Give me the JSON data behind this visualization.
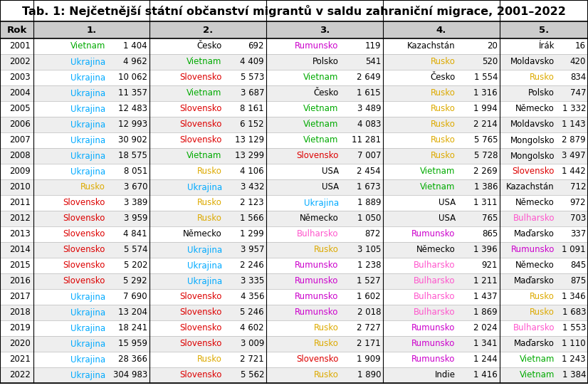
{
  "title": "Tab. 1: Nejčetnější státní občanství migrantů v saldu zahraniční migrace, 2001–2022",
  "columns": [
    "Rok",
    "1.",
    "2.",
    "3.",
    "4.",
    "5."
  ],
  "rows": [
    {
      "year": "2001",
      "c1_name": "Vietnam",
      "c1_val": "1 404",
      "c1_color": "#00aa00",
      "c2_name": "Česko",
      "c2_val": "692",
      "c2_color": "#000000",
      "c3_name": "Rumunsko",
      "c3_val": "119",
      "c3_color": "#cc00cc",
      "c4_name": "Kazachstán",
      "c4_val": "20",
      "c4_color": "#000000",
      "c5_name": "Írák",
      "c5_val": "16",
      "c5_color": "#000000"
    },
    {
      "year": "2002",
      "c1_name": "Ukrajina",
      "c1_val": "4 962",
      "c1_color": "#00aaff",
      "c2_name": "Vietnam",
      "c2_val": "4 409",
      "c2_color": "#00aa00",
      "c3_name": "Polsko",
      "c3_val": "541",
      "c3_color": "#000000",
      "c4_name": "Rusko",
      "c4_val": "520",
      "c4_color": "#ddaa00",
      "c5_name": "Moldavsko",
      "c5_val": "420",
      "c5_color": "#000000"
    },
    {
      "year": "2003",
      "c1_name": "Ukrajina",
      "c1_val": "10 062",
      "c1_color": "#00aaff",
      "c2_name": "Slovensko",
      "c2_val": "5 573",
      "c2_color": "#dd0000",
      "c3_name": "Vietnam",
      "c3_val": "2 649",
      "c3_color": "#00aa00",
      "c4_name": "Česko",
      "c4_val": "1 554",
      "c4_color": "#000000",
      "c5_name": "Rusko",
      "c5_val": "834",
      "c5_color": "#ddaa00"
    },
    {
      "year": "2004",
      "c1_name": "Ukrajina",
      "c1_val": "11 357",
      "c1_color": "#00aaff",
      "c2_name": "Vietnam",
      "c2_val": "3 687",
      "c2_color": "#00aa00",
      "c3_name": "Česko",
      "c3_val": "1 615",
      "c3_color": "#000000",
      "c4_name": "Rusko",
      "c4_val": "1 316",
      "c4_color": "#ddaa00",
      "c5_name": "Polsko",
      "c5_val": "747",
      "c5_color": "#000000"
    },
    {
      "year": "2005",
      "c1_name": "Ukrajina",
      "c1_val": "12 483",
      "c1_color": "#00aaff",
      "c2_name": "Slovensko",
      "c2_val": "8 161",
      "c2_color": "#dd0000",
      "c3_name": "Vietnam",
      "c3_val": "3 489",
      "c3_color": "#00aa00",
      "c4_name": "Rusko",
      "c4_val": "1 994",
      "c4_color": "#ddaa00",
      "c5_name": "Německo",
      "c5_val": "1 332",
      "c5_color": "#000000"
    },
    {
      "year": "2006",
      "c1_name": "Ukrajina",
      "c1_val": "12 993",
      "c1_color": "#00aaff",
      "c2_name": "Slovensko",
      "c2_val": "6 152",
      "c2_color": "#dd0000",
      "c3_name": "Vietnam",
      "c3_val": "4 083",
      "c3_color": "#00aa00",
      "c4_name": "Rusko",
      "c4_val": "2 214",
      "c4_color": "#ddaa00",
      "c5_name": "Moldavsko",
      "c5_val": "1 143",
      "c5_color": "#000000"
    },
    {
      "year": "2007",
      "c1_name": "Ukrajina",
      "c1_val": "30 902",
      "c1_color": "#00aaff",
      "c2_name": "Slovensko",
      "c2_val": "13 129",
      "c2_color": "#dd0000",
      "c3_name": "Vietnam",
      "c3_val": "11 281",
      "c3_color": "#00aa00",
      "c4_name": "Rusko",
      "c4_val": "5 765",
      "c4_color": "#ddaa00",
      "c5_name": "Mongolsko",
      "c5_val": "2 879",
      "c5_color": "#000000"
    },
    {
      "year": "2008",
      "c1_name": "Ukrajina",
      "c1_val": "18 575",
      "c1_color": "#00aaff",
      "c2_name": "Vietnam",
      "c2_val": "13 299",
      "c2_color": "#00aa00",
      "c3_name": "Slovensko",
      "c3_val": "7 007",
      "c3_color": "#dd0000",
      "c4_name": "Rusko",
      "c4_val": "5 728",
      "c4_color": "#ddaa00",
      "c5_name": "Mongolsko",
      "c5_val": "3 497",
      "c5_color": "#000000"
    },
    {
      "year": "2009",
      "c1_name": "Ukrajina",
      "c1_val": "8 051",
      "c1_color": "#00aaff",
      "c2_name": "Rusko",
      "c2_val": "4 106",
      "c2_color": "#ddaa00",
      "c3_name": "USA",
      "c3_val": "2 454",
      "c3_color": "#000000",
      "c4_name": "Vietnam",
      "c4_val": "2 269",
      "c4_color": "#00aa00",
      "c5_name": "Slovensko",
      "c5_val": "1 442",
      "c5_color": "#dd0000"
    },
    {
      "year": "2010",
      "c1_name": "Rusko",
      "c1_val": "3 670",
      "c1_color": "#ddaa00",
      "c2_name": "Ukrajina",
      "c2_val": "3 432",
      "c2_color": "#00aaff",
      "c3_name": "USA",
      "c3_val": "1 673",
      "c3_color": "#000000",
      "c4_name": "Vietnam",
      "c4_val": "1 386",
      "c4_color": "#00aa00",
      "c5_name": "Kazachstán",
      "c5_val": "712",
      "c5_color": "#000000"
    },
    {
      "year": "2011",
      "c1_name": "Slovensko",
      "c1_val": "3 389",
      "c1_color": "#dd0000",
      "c2_name": "Rusko",
      "c2_val": "2 123",
      "c2_color": "#ddaa00",
      "c3_name": "Ukrajina",
      "c3_val": "1 889",
      "c3_color": "#00aaff",
      "c4_name": "USA",
      "c4_val": "1 311",
      "c4_color": "#000000",
      "c5_name": "Německo",
      "c5_val": "972",
      "c5_color": "#000000"
    },
    {
      "year": "2012",
      "c1_name": "Slovensko",
      "c1_val": "3 959",
      "c1_color": "#dd0000",
      "c2_name": "Rusko",
      "c2_val": "1 566",
      "c2_color": "#ddaa00",
      "c3_name": "Německo",
      "c3_val": "1 050",
      "c3_color": "#000000",
      "c4_name": "USA",
      "c4_val": "765",
      "c4_color": "#000000",
      "c5_name": "Bulharsko",
      "c5_val": "703",
      "c5_color": "#ff55cc"
    },
    {
      "year": "2013",
      "c1_name": "Slovensko",
      "c1_val": "4 841",
      "c1_color": "#dd0000",
      "c2_name": "Německo",
      "c2_val": "1 299",
      "c2_color": "#000000",
      "c3_name": "Bulharsko",
      "c3_val": "872",
      "c3_color": "#ff55cc",
      "c4_name": "Rumunsko",
      "c4_val": "865",
      "c4_color": "#cc00cc",
      "c5_name": "Maďarsko",
      "c5_val": "337",
      "c5_color": "#000000"
    },
    {
      "year": "2014",
      "c1_name": "Slovensko",
      "c1_val": "5 574",
      "c1_color": "#dd0000",
      "c2_name": "Ukrajina",
      "c2_val": "3 957",
      "c2_color": "#00aaff",
      "c3_name": "Rusko",
      "c3_val": "3 105",
      "c3_color": "#ddaa00",
      "c4_name": "Německo",
      "c4_val": "1 396",
      "c4_color": "#000000",
      "c5_name": "Rumunsko",
      "c5_val": "1 091",
      "c5_color": "#cc00cc"
    },
    {
      "year": "2015",
      "c1_name": "Slovensko",
      "c1_val": "5 202",
      "c1_color": "#dd0000",
      "c2_name": "Ukrajina",
      "c2_val": "2 246",
      "c2_color": "#00aaff",
      "c3_name": "Rumunsko",
      "c3_val": "1 238",
      "c3_color": "#cc00cc",
      "c4_name": "Bulharsko",
      "c4_val": "921",
      "c4_color": "#ff55cc",
      "c5_name": "Německo",
      "c5_val": "845",
      "c5_color": "#000000"
    },
    {
      "year": "2016",
      "c1_name": "Slovensko",
      "c1_val": "5 292",
      "c1_color": "#dd0000",
      "c2_name": "Ukrajina",
      "c2_val": "3 335",
      "c2_color": "#00aaff",
      "c3_name": "Rumunsko",
      "c3_val": "1 527",
      "c3_color": "#cc00cc",
      "c4_name": "Bulharsko",
      "c4_val": "1 211",
      "c4_color": "#ff55cc",
      "c5_name": "Maďarsko",
      "c5_val": "875",
      "c5_color": "#000000"
    },
    {
      "year": "2017",
      "c1_name": "Ukrajina",
      "c1_val": "7 690",
      "c1_color": "#00aaff",
      "c2_name": "Slovensko",
      "c2_val": "4 356",
      "c2_color": "#dd0000",
      "c3_name": "Rumunsko",
      "c3_val": "1 602",
      "c3_color": "#cc00cc",
      "c4_name": "Bulharsko",
      "c4_val": "1 437",
      "c4_color": "#ff55cc",
      "c5_name": "Rusko",
      "c5_val": "1 346",
      "c5_color": "#ddaa00"
    },
    {
      "year": "2018",
      "c1_name": "Ukrajina",
      "c1_val": "13 204",
      "c1_color": "#00aaff",
      "c2_name": "Slovensko",
      "c2_val": "5 246",
      "c2_color": "#dd0000",
      "c3_name": "Rumunsko",
      "c3_val": "2 018",
      "c3_color": "#cc00cc",
      "c4_name": "Bulharsko",
      "c4_val": "1 869",
      "c4_color": "#ff55cc",
      "c5_name": "Rusko",
      "c5_val": "1 683",
      "c5_color": "#ddaa00"
    },
    {
      "year": "2019",
      "c1_name": "Ukrajina",
      "c1_val": "18 241",
      "c1_color": "#00aaff",
      "c2_name": "Slovensko",
      "c2_val": "4 602",
      "c2_color": "#dd0000",
      "c3_name": "Rusko",
      "c3_val": "2 727",
      "c3_color": "#ddaa00",
      "c4_name": "Rumunsko",
      "c4_val": "2 024",
      "c4_color": "#cc00cc",
      "c5_name": "Bulharsko",
      "c5_val": "1 553",
      "c5_color": "#ff55cc"
    },
    {
      "year": "2020",
      "c1_name": "Ukrajina",
      "c1_val": "15 959",
      "c1_color": "#00aaff",
      "c2_name": "Slovensko",
      "c2_val": "3 009",
      "c2_color": "#dd0000",
      "c3_name": "Rusko",
      "c3_val": "2 171",
      "c3_color": "#ddaa00",
      "c4_name": "Rumunsko",
      "c4_val": "1 341",
      "c4_color": "#cc00cc",
      "c5_name": "Maďarsko",
      "c5_val": "1 110",
      "c5_color": "#000000"
    },
    {
      "year": "2021",
      "c1_name": "Ukrajina",
      "c1_val": "28 366",
      "c1_color": "#00aaff",
      "c2_name": "Rusko",
      "c2_val": "2 721",
      "c2_color": "#ddaa00",
      "c3_name": "Slovensko",
      "c3_val": "1 909",
      "c3_color": "#dd0000",
      "c4_name": "Rumunsko",
      "c4_val": "1 244",
      "c4_color": "#cc00cc",
      "c5_name": "Vietnam",
      "c5_val": "1 243",
      "c5_color": "#00aa00"
    },
    {
      "year": "2022",
      "c1_name": "Ukrajina",
      "c1_val": "304 983",
      "c1_color": "#00aaff",
      "c2_name": "Slovensko",
      "c2_val": "5 562",
      "c2_color": "#dd0000",
      "c3_name": "Rusko",
      "c3_val": "1 890",
      "c3_color": "#ddaa00",
      "c4_name": "Indie",
      "c4_val": "1 416",
      "c4_color": "#000000",
      "c5_name": "Vietnam",
      "c5_val": "1 384",
      "c5_color": "#00aa00"
    }
  ],
  "header_bg": "#cccccc",
  "row_bg_odd": "#ffffff",
  "row_bg_even": "#eeeeee",
  "title_fontsize": 11.5,
  "header_fontsize": 9.5,
  "cell_fontsize": 8.5,
  "year_fontsize": 8.5
}
